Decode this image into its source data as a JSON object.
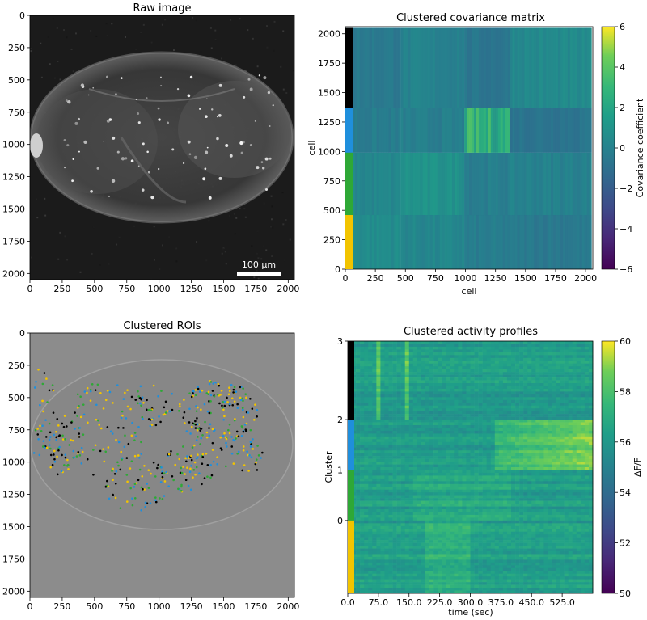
{
  "colors": {
    "cluster_bars": [
      "#000000",
      "#1f8fdc",
      "#2ea836",
      "#f2c400"
    ],
    "viridis_low": "#440154",
    "viridis_high": "#fde725",
    "roi_bg": "#8c8c8c"
  },
  "chart_data": [
    {
      "type": "image",
      "title": "Raw image",
      "xticks": [
        "0",
        "250",
        "500",
        "750",
        "1000",
        "1250",
        "1500",
        "1750",
        "2000"
      ],
      "yticks": [
        "0",
        "250",
        "500",
        "750",
        "1000",
        "1250",
        "1500",
        "1750",
        "2000"
      ],
      "xlim": [
        0,
        2048
      ],
      "ylim": [
        2048,
        0
      ],
      "scalebar": "100 μm"
    },
    {
      "type": "heatmap",
      "title": "Clustered covariance matrix",
      "xlabel": "cell",
      "ylabel": "cell",
      "xticks": [
        "0",
        "250",
        "500",
        "750",
        "1000",
        "1250",
        "1500",
        "1750",
        "2000"
      ],
      "yticks": [
        "0",
        "250",
        "500",
        "750",
        "1000",
        "1250",
        "1500",
        "1750",
        "2000"
      ],
      "xlim": [
        0,
        2060
      ],
      "ylim": [
        0,
        2060
      ],
      "cluster_boundaries": [
        460,
        990,
        1370
      ],
      "colorbar": {
        "label": "Covariance coefficient",
        "ticks": [
          "6",
          "4",
          "2",
          "0",
          "−2",
          "−4",
          "−6"
        ],
        "range": [
          -6,
          6
        ]
      }
    },
    {
      "type": "scatter",
      "title": "Clustered ROIs",
      "xticks": [
        "0",
        "250",
        "500",
        "750",
        "1000",
        "1250",
        "1500",
        "1750",
        "2000"
      ],
      "yticks": [
        "0",
        "250",
        "500",
        "750",
        "1000",
        "1250",
        "1500",
        "1750",
        "2000"
      ],
      "xlim": [
        0,
        2048
      ],
      "ylim": [
        2048,
        0
      ]
    },
    {
      "type": "heatmap",
      "title": "Clustered activity profiles",
      "xlabel": "time (sec)",
      "ylabel": "Cluster",
      "xticks": [
        "0.0",
        "75.0",
        "150.0",
        "225.0",
        "300.0",
        "375.0",
        "450.0",
        "525.0"
      ],
      "x_tick_values": [
        0,
        75,
        150,
        225,
        300,
        375,
        450,
        525
      ],
      "xlim": [
        0,
        600
      ],
      "yticks": [
        "3",
        "2",
        "1",
        "0"
      ],
      "colorbar": {
        "label": "ΔF/F",
        "ticks": [
          "60",
          "58",
          "56",
          "54",
          "52",
          "50"
        ],
        "range": [
          50,
          60
        ]
      }
    }
  ]
}
